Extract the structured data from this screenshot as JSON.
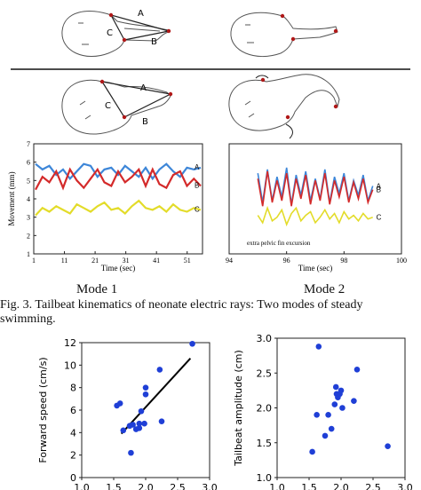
{
  "figure": {
    "labels": {
      "a": "A",
      "b": "B",
      "c": "C"
    },
    "mode1_label": "Mode 1",
    "mode2_label": "Mode 2",
    "caption": "Fig. 3.   Tailbeat kinematics of neonate electric rays: Two modes of steady swimming."
  },
  "chart_data": [
    {
      "type": "line",
      "panel": "mode1-trace",
      "xlabel": "Time (sec)",
      "ylabel": "Movement (mm)",
      "x_ticks": [
        1,
        11,
        21,
        31,
        41,
        51
      ],
      "y_ticks": [
        1,
        2,
        3,
        4,
        5,
        6,
        7
      ],
      "ylim": [
        1,
        7
      ],
      "xlim": [
        1,
        56
      ],
      "series": [
        {
          "name": "A",
          "color": "#3d86d8",
          "values": [
            5.9,
            5.6,
            5.8,
            5.3,
            5.6,
            5.1,
            5.5,
            5.9,
            5.8,
            5.2,
            5.6,
            5.7,
            5.3,
            5.8,
            5.5,
            5.2,
            5.7,
            5.1,
            5.6,
            5.9,
            5.5,
            5.2,
            5.7,
            5.6,
            5.7
          ]
        },
        {
          "name": "B",
          "color": "#d42a2a",
          "values": [
            4.5,
            5.2,
            4.9,
            5.5,
            4.6,
            5.6,
            5.0,
            4.6,
            5.1,
            5.6,
            4.9,
            4.7,
            5.5,
            4.9,
            5.2,
            5.6,
            4.7,
            5.6,
            4.8,
            4.6,
            5.3,
            5.5,
            4.7,
            5.1,
            4.7
          ]
        },
        {
          "name": "C",
          "color": "#e3dc2a",
          "values": [
            3.1,
            3.5,
            3.3,
            3.6,
            3.4,
            3.2,
            3.7,
            3.5,
            3.3,
            3.6,
            3.8,
            3.4,
            3.5,
            3.2,
            3.6,
            3.9,
            3.5,
            3.4,
            3.6,
            3.3,
            3.7,
            3.4,
            3.3,
            3.5,
            3.4
          ]
        }
      ]
    },
    {
      "type": "line",
      "panel": "mode2-trace",
      "xlabel": "Time (sec)",
      "x_ticks": [
        94,
        96,
        98,
        100
      ],
      "xlim": [
        94,
        100
      ],
      "ylim": [
        1,
        7
      ],
      "annotation": "extra pelvic fin excursion",
      "series": [
        {
          "name": "A",
          "color": "#3d86d8",
          "values": [
            5.4,
            3.8,
            5.6,
            3.9,
            5.2,
            4.1,
            5.7,
            3.7,
            5.3,
            4.2,
            5.5,
            3.9,
            5.1,
            4.0,
            5.6,
            3.8,
            5.2,
            4.3,
            5.4,
            3.9,
            5.0,
            4.2,
            5.3,
            3.9,
            4.7
          ]
        },
        {
          "name": "B",
          "color": "#d42a2a",
          "values": [
            5.1,
            3.6,
            5.5,
            3.8,
            5.0,
            3.9,
            5.4,
            3.6,
            5.1,
            4.0,
            5.3,
            3.7,
            5.0,
            3.9,
            5.4,
            3.7,
            5.0,
            4.1,
            5.2,
            3.8,
            4.9,
            4.0,
            5.1,
            3.8,
            4.5
          ]
        },
        {
          "name": "C",
          "color": "#e3dc2a",
          "values": [
            3.1,
            2.7,
            3.5,
            2.8,
            3.0,
            3.4,
            2.6,
            3.2,
            3.5,
            2.8,
            3.1,
            3.3,
            2.7,
            3.0,
            3.4,
            2.9,
            3.2,
            2.7,
            3.3,
            2.9,
            3.1,
            2.8,
            3.2,
            2.9,
            3.0
          ]
        }
      ]
    },
    {
      "type": "scatter",
      "panel": "speed",
      "xlabel": "Tailbeat frequency (Hz)",
      "ylabel": "Forward speed (cm/s)",
      "xlim": [
        1.0,
        3.0
      ],
      "ylim": [
        0,
        12
      ],
      "x_ticks": [
        "1.0",
        "1.5",
        "2.0",
        "2.5",
        "3.0"
      ],
      "y_ticks": [
        "0",
        "2",
        "4",
        "6",
        "8",
        "10",
        "12"
      ],
      "point_color": "#1f3fd6",
      "points": [
        [
          1.55,
          6.4
        ],
        [
          1.6,
          6.6
        ],
        [
          1.65,
          4.2
        ],
        [
          1.75,
          4.6
        ],
        [
          1.77,
          2.2
        ],
        [
          1.8,
          4.7
        ],
        [
          1.85,
          4.3
        ],
        [
          1.9,
          4.4
        ],
        [
          1.9,
          4.8
        ],
        [
          1.93,
          5.9
        ],
        [
          1.98,
          4.8
        ],
        [
          2.0,
          8.0
        ],
        [
          2.0,
          7.4
        ],
        [
          2.22,
          9.6
        ],
        [
          2.25,
          5.0
        ],
        [
          2.73,
          11.9
        ]
      ],
      "fit_line": [
        [
          1.62,
          3.9
        ],
        [
          2.7,
          10.6
        ]
      ]
    },
    {
      "type": "scatter",
      "panel": "amplitude",
      "xlabel": "Tailbeat frequency (Hz)",
      "ylabel": "Tailbeat amplitude (cm)",
      "xlim": [
        1.0,
        3.0
      ],
      "ylim": [
        1.0,
        3.0
      ],
      "x_ticks": [
        "1.0",
        "1.5",
        "2.0",
        "2.5",
        "3.0"
      ],
      "y_ticks": [
        "1.0",
        "1.5",
        "2.0",
        "2.5",
        "3.0"
      ],
      "point_color": "#1f3fd6",
      "points": [
        [
          1.55,
          1.37
        ],
        [
          1.62,
          1.9
        ],
        [
          1.65,
          2.88
        ],
        [
          1.75,
          1.6
        ],
        [
          1.8,
          1.9
        ],
        [
          1.85,
          1.7
        ],
        [
          1.9,
          2.05
        ],
        [
          1.92,
          2.3
        ],
        [
          1.93,
          2.2
        ],
        [
          1.95,
          2.15
        ],
        [
          1.98,
          2.2
        ],
        [
          2.0,
          2.25
        ],
        [
          2.02,
          2.0
        ],
        [
          2.2,
          2.1
        ],
        [
          2.25,
          2.55
        ],
        [
          2.73,
          1.45
        ]
      ]
    }
  ]
}
